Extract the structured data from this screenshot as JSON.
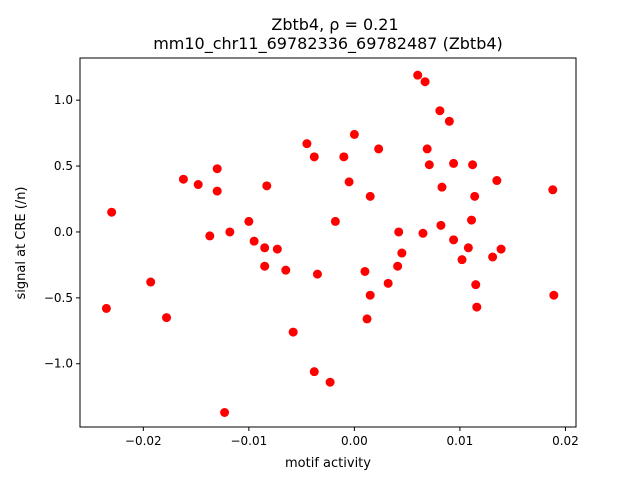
{
  "chart_data": {
    "type": "scatter",
    "title_line1": "Zbtb4, ρ = 0.21",
    "title_line2": "mm10_chr11_69782336_69782487 (Zbtb4)",
    "xlabel": "motif activity",
    "ylabel": "signal at CRE (/n)",
    "xlim": [
      -0.026,
      0.021
    ],
    "ylim": [
      -1.48,
      1.32
    ],
    "xticks": [
      -0.02,
      -0.01,
      0.0,
      0.01,
      0.02
    ],
    "xtick_labels": [
      "−0.02",
      "−0.01",
      "0.00",
      "0.01",
      "0.02"
    ],
    "yticks": [
      -1.0,
      -0.5,
      0.0,
      0.5,
      1.0
    ],
    "ytick_labels": [
      "−1.0",
      "−0.5",
      "0.0",
      "0.5",
      "1.0"
    ],
    "grid": false,
    "marker_color": "#ff0000",
    "points": [
      {
        "x": -0.0235,
        "y": -0.58
      },
      {
        "x": -0.023,
        "y": 0.15
      },
      {
        "x": -0.0193,
        "y": -0.38
      },
      {
        "x": -0.0178,
        "y": -0.65
      },
      {
        "x": -0.0162,
        "y": 0.4
      },
      {
        "x": -0.0148,
        "y": 0.36
      },
      {
        "x": -0.0137,
        "y": -0.03
      },
      {
        "x": -0.013,
        "y": 0.48
      },
      {
        "x": -0.013,
        "y": 0.31
      },
      {
        "x": -0.0123,
        "y": -1.37
      },
      {
        "x": -0.0118,
        "y": 0.0
      },
      {
        "x": -0.01,
        "y": 0.08
      },
      {
        "x": -0.0095,
        "y": -0.07
      },
      {
        "x": -0.0085,
        "y": -0.12
      },
      {
        "x": -0.0085,
        "y": -0.26
      },
      {
        "x": -0.0083,
        "y": 0.35
      },
      {
        "x": -0.0073,
        "y": -0.13
      },
      {
        "x": -0.0065,
        "y": -0.29
      },
      {
        "x": -0.0058,
        "y": -0.76
      },
      {
        "x": -0.0045,
        "y": 0.67
      },
      {
        "x": -0.0038,
        "y": 0.57
      },
      {
        "x": -0.0038,
        "y": -1.06
      },
      {
        "x": -0.0035,
        "y": -0.32
      },
      {
        "x": -0.0023,
        "y": -1.14
      },
      {
        "x": -0.0018,
        "y": 0.08
      },
      {
        "x": -0.001,
        "y": 0.57
      },
      {
        "x": -0.0005,
        "y": 0.38
      },
      {
        "x": 0.0,
        "y": 0.74
      },
      {
        "x": 0.001,
        "y": -0.3
      },
      {
        "x": 0.0012,
        "y": -0.66
      },
      {
        "x": 0.0015,
        "y": 0.27
      },
      {
        "x": 0.0015,
        "y": -0.48
      },
      {
        "x": 0.0023,
        "y": 0.63
      },
      {
        "x": 0.0032,
        "y": -0.39
      },
      {
        "x": 0.0041,
        "y": -0.26
      },
      {
        "x": 0.0042,
        "y": 0.0
      },
      {
        "x": 0.0045,
        "y": -0.16
      },
      {
        "x": 0.006,
        "y": 1.19
      },
      {
        "x": 0.0065,
        "y": -0.01
      },
      {
        "x": 0.0067,
        "y": 1.14
      },
      {
        "x": 0.0069,
        "y": 0.63
      },
      {
        "x": 0.0071,
        "y": 0.51
      },
      {
        "x": 0.0081,
        "y": 0.92
      },
      {
        "x": 0.0082,
        "y": 0.05
      },
      {
        "x": 0.0083,
        "y": 0.34
      },
      {
        "x": 0.009,
        "y": 0.84
      },
      {
        "x": 0.0094,
        "y": 0.52
      },
      {
        "x": 0.0094,
        "y": -0.06
      },
      {
        "x": 0.0102,
        "y": -0.21
      },
      {
        "x": 0.0108,
        "y": -0.12
      },
      {
        "x": 0.0111,
        "y": 0.09
      },
      {
        "x": 0.0112,
        "y": 0.51
      },
      {
        "x": 0.0114,
        "y": 0.27
      },
      {
        "x": 0.0115,
        "y": -0.4
      },
      {
        "x": 0.0116,
        "y": -0.57
      },
      {
        "x": 0.0131,
        "y": -0.19
      },
      {
        "x": 0.0135,
        "y": 0.39
      },
      {
        "x": 0.0139,
        "y": -0.13
      },
      {
        "x": 0.0188,
        "y": 0.32
      },
      {
        "x": 0.0189,
        "y": -0.48
      }
    ]
  }
}
